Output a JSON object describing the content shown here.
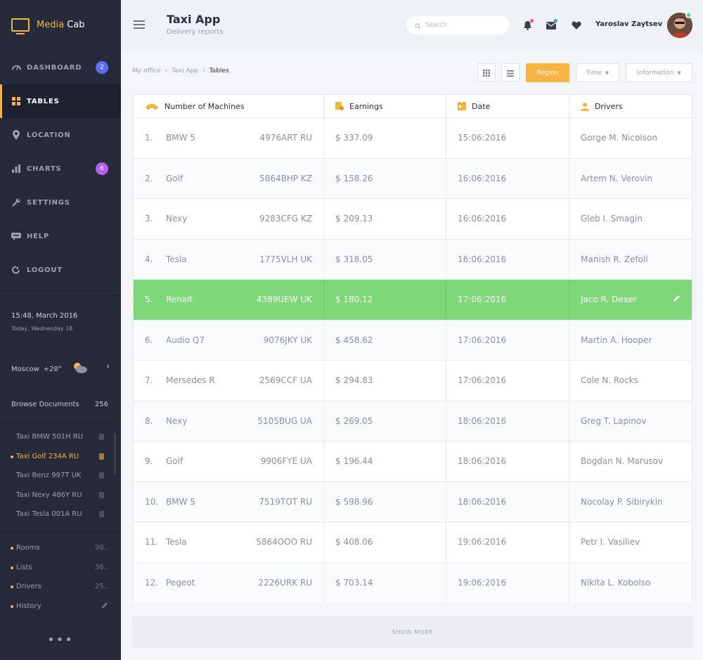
{
  "brand": {
    "name_part1": "Media",
    "name_part2": "Cab",
    "accent": "#f6b442"
  },
  "sidebar": {
    "nav": [
      {
        "label": "DASHBOARD",
        "icon": "dashboard-icon",
        "badge": "2",
        "badge_color": "#5b6ef5"
      },
      {
        "label": "TABLES",
        "icon": "tables-icon",
        "active": true
      },
      {
        "label": "LOCATION",
        "icon": "location-pin-icon"
      },
      {
        "label": "CHARTS",
        "icon": "charts-icon",
        "badge": "6",
        "badge_color": "#b45ef5"
      },
      {
        "label": "SETTINGS",
        "icon": "wrench-icon"
      },
      {
        "label": "HELP",
        "icon": "help-icon"
      },
      {
        "label": "LOGOUT",
        "icon": "logout-icon"
      }
    ],
    "clock": {
      "time": "15:48, March 2016",
      "day": "Today, Wednesday 18"
    },
    "weather": {
      "city": "Moscow",
      "temp": "+28°",
      "icon": "partly-cloudy-icon"
    },
    "documents": {
      "label": "Browse Documents",
      "count": "256"
    },
    "taxi_list": [
      {
        "label": "Taxi BMW 501H RU"
      },
      {
        "label": "Taxi Golf 234A RU",
        "active": true
      },
      {
        "label": "Taxi Benz 997T UK"
      },
      {
        "label": "Taxi Nexy 486Y RU"
      },
      {
        "label": "Taxi Tesla 001A RU"
      }
    ],
    "stats": [
      {
        "label": "Rooms",
        "value": "98.."
      },
      {
        "label": "Lists",
        "value": "36.."
      },
      {
        "label": "Drivers",
        "value": "25.."
      },
      {
        "label": "History",
        "value": "",
        "icon": "pencil-icon"
      }
    ],
    "more": "•••"
  },
  "header": {
    "title": "Taxi App",
    "subtitle": "Delivery reports",
    "search_placeholder": "Search",
    "user_name": "Yaroslav Zaytsev"
  },
  "breadcrumb": [
    "My office",
    "Taxi App",
    "Tables"
  ],
  "toolbar": {
    "region_label": "Region",
    "time_label": "Time",
    "info_label": "Information"
  },
  "table": {
    "headers": [
      "Number of Machines",
      "Earnings",
      "Date",
      "Drivers"
    ],
    "rows": [
      {
        "num": "1.",
        "car": "BMW 5",
        "plate": "4976ART RU",
        "earnings": "$ 337.09",
        "date": "15:06:2016",
        "driver": "Gorge M. Nicolson"
      },
      {
        "num": "2.",
        "car": "Golf",
        "plate": "5864BHP KZ",
        "earnings": "$ 158.26",
        "date": "16:06:2016",
        "driver": "Artem N. Verovin"
      },
      {
        "num": "3.",
        "car": "Nexy",
        "plate": "9283CFG KZ",
        "earnings": "$ 209.13",
        "date": "16:06:2016",
        "driver": "Gleb I. Smagin"
      },
      {
        "num": "4.",
        "car": "Tesla",
        "plate": "1775VLH UK",
        "earnings": "$ 318.05",
        "date": "16:06:2016",
        "driver": "Manish R. Zefoll"
      },
      {
        "num": "5.",
        "car": "Renalt",
        "plate": "4389UEW UK",
        "earnings": "$ 180.12",
        "date": "17:06:2016",
        "driver": "Jaco R. Dexer",
        "highlight": true
      },
      {
        "num": "6.",
        "car": "Audio Q7",
        "plate": "9076JKY UK",
        "earnings": "$ 458.62",
        "date": "17:06:2016",
        "driver": "Martin A. Hooper"
      },
      {
        "num": "7.",
        "car": "Mersedes R",
        "plate": "2569CCF UA",
        "earnings": "$ 294.83",
        "date": "17:06:2016",
        "driver": "Cole N. Rocks"
      },
      {
        "num": "8.",
        "car": "Nexy",
        "plate": "5105BUG UA",
        "earnings": "$ 269.05",
        "date": "18:06:2016",
        "driver": "Greg T. Lapinov"
      },
      {
        "num": "9.",
        "car": "Golf",
        "plate": "9906FYE UA",
        "earnings": "$ 196.44",
        "date": "18:06:2016",
        "driver": "Bogdan N. Marusov"
      },
      {
        "num": "10.",
        "car": "BMW 5",
        "plate": "7519TOT RU",
        "earnings": "$ 598.96",
        "date": "18:06:2016",
        "driver": "Nocolay P. Sibirykin"
      },
      {
        "num": "11.",
        "car": "Tesla",
        "plate": "5864OOO RU",
        "earnings": "$ 408.06",
        "date": "19:06:2016",
        "driver": "Petr I. Vasiliev"
      },
      {
        "num": "12.",
        "car": "Pegeot",
        "plate": "2226URK RU",
        "earnings": "$ 703.14",
        "date": "19:06:2016",
        "driver": "Nikita L. Kobolso"
      }
    ],
    "highlight_color": "#7ed87a"
  },
  "show_more_label": "SHOW MORE"
}
